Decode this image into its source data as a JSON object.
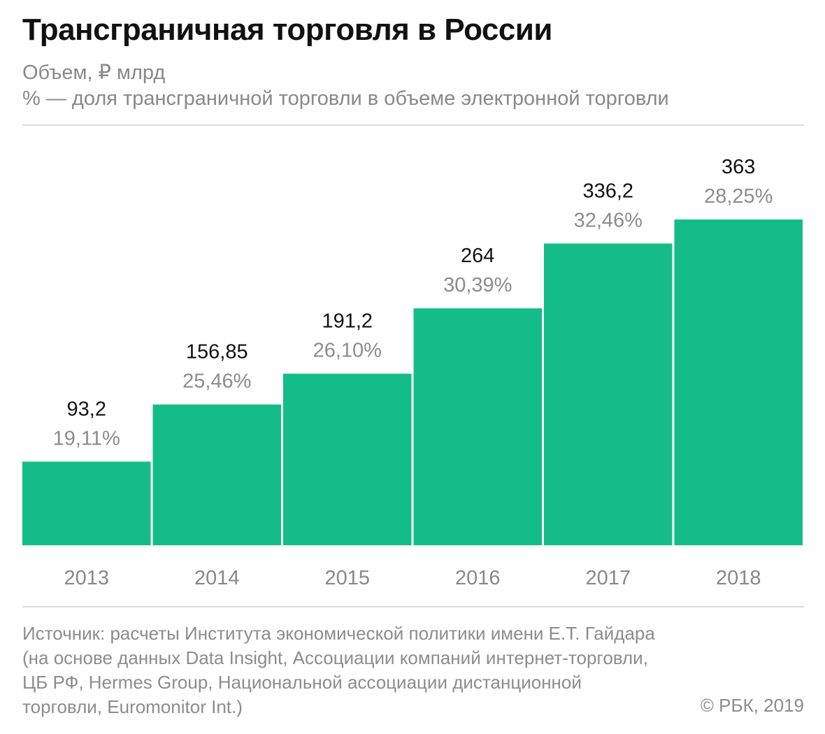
{
  "header": {
    "title": "Трансграничная торговля в России",
    "subtitle_line1": "Объем, ₽ млрд",
    "subtitle_line2": "% — доля трансграничной торговли в объеме электронной торговли"
  },
  "footer": {
    "source": "Источник: расчеты Института экономической политики имени Е.Т. Гайдара (на основе данных Data Insight, Ассоциации компаний интернет-торговли, ЦБ РФ, Hermes Group, Национальной ассоциации дистанционной торговли, Euromonitor Int.)",
    "copyright": "© РБК, 2019"
  },
  "chart_data": {
    "type": "bar",
    "categories": [
      "2013",
      "2014",
      "2015",
      "2016",
      "2017",
      "2018"
    ],
    "values": [
      93.2,
      156.85,
      191.2,
      264,
      336.2,
      363
    ],
    "value_labels": [
      "93,2",
      "156,85",
      "191,2",
      "264",
      "336,2",
      "363"
    ],
    "share_percent": [
      19.11,
      25.46,
      26.1,
      30.39,
      32.46,
      28.25
    ],
    "share_labels": [
      "19,11%",
      "25,46%",
      "26,10%",
      "30,39%",
      "32,46%",
      "28,25%"
    ],
    "ylim": [
      0,
      363
    ],
    "grid": false,
    "legend": "none",
    "colors": {
      "bar": "#14bc87",
      "value_label": "#111111",
      "share_label": "#8c8c8c",
      "tick_label": "#888888"
    }
  }
}
